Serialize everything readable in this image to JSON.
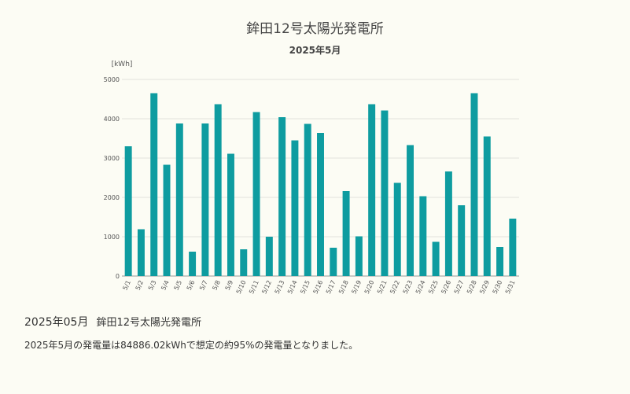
{
  "chart_data": {
    "type": "bar",
    "title": "鉾田12号太陽光発電所",
    "subtitle": "2025年5月",
    "ylabel": "[kWh]",
    "xlabel": "",
    "ylim": [
      0,
      5000
    ],
    "yticks": [
      "0",
      "1000",
      "2000",
      "3000",
      "4000",
      "5000"
    ],
    "grid": true,
    "bar_color": "#0e9ca0",
    "categories": [
      "5/1",
      "5/2",
      "5/3",
      "5/4",
      "5/5",
      "5/6",
      "5/7",
      "5/8",
      "5/9",
      "5/10",
      "5/11",
      "5/12",
      "5/13",
      "5/14",
      "5/15",
      "5/16",
      "5/17",
      "5/18",
      "5/19",
      "5/20",
      "5/21",
      "5/22",
      "5/23",
      "5/24",
      "5/25",
      "5/26",
      "5/27",
      "5/28",
      "5/29",
      "5/30",
      "5/31"
    ],
    "values": [
      3300,
      1190,
      4650,
      2830,
      3880,
      620,
      3880,
      4370,
      3110,
      680,
      4170,
      1000,
      4040,
      3450,
      3870,
      3640,
      720,
      2160,
      1010,
      4370,
      4210,
      2370,
      3330,
      2030,
      870,
      2660,
      1800,
      4650,
      3550,
      740,
      1460
    ]
  },
  "summary": {
    "period": "2025年05月",
    "station": "鉾田12号太陽光発電所",
    "text": "2025年5月の発電量は84886.02kWhで想定の約95%の発電量となりました。"
  }
}
